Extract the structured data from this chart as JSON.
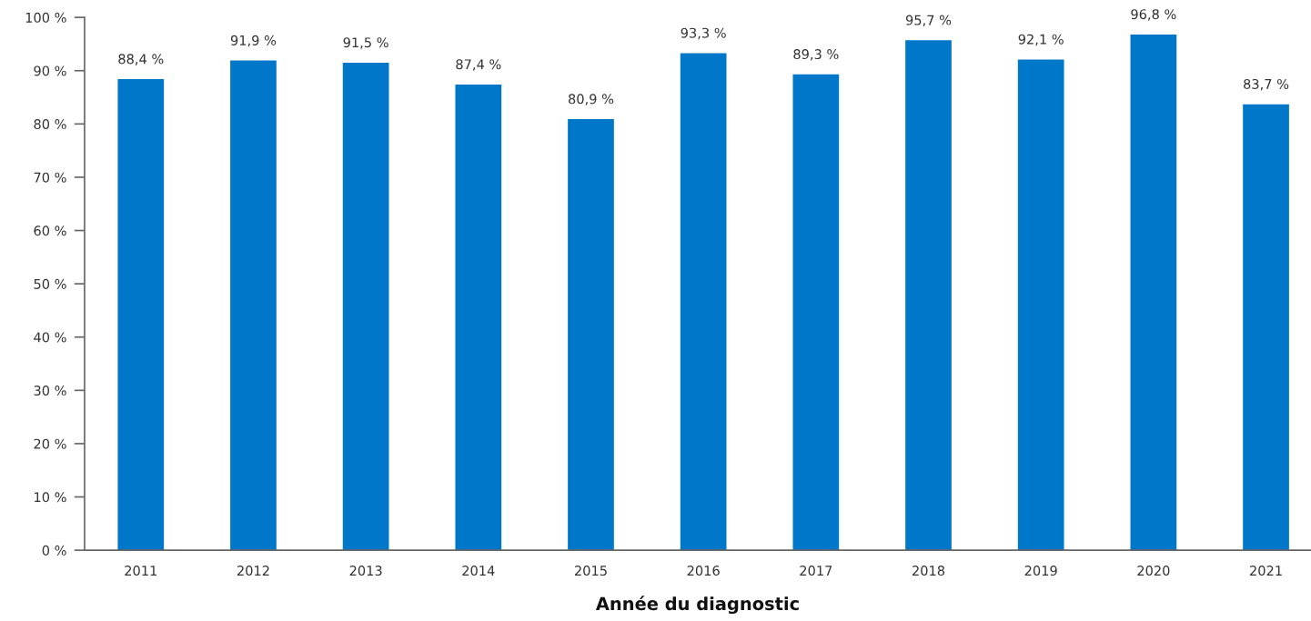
{
  "chart_data": {
    "type": "bar",
    "xlabel": "Année du diagnostic",
    "categories": [
      "2011",
      "2012",
      "2013",
      "2014",
      "2015",
      "2016",
      "2017",
      "2018",
      "2019",
      "2020",
      "2021"
    ],
    "values": [
      88.4,
      91.9,
      91.5,
      87.4,
      80.9,
      93.3,
      89.3,
      95.7,
      92.1,
      96.8,
      83.7
    ],
    "color": "#0077c8",
    "value_labels": [
      "88,4 %",
      "91,9 %",
      "91,5 %",
      "87,4 %",
      "80,9 %",
      "93,3 %",
      "89,3 %",
      "95,7 %",
      "92,1 %",
      "96,8 %",
      "83,7 %"
    ],
    "ylim": [
      0,
      100
    ],
    "yticks": [
      {
        "value": 0,
        "label": "0 %"
      },
      {
        "value": 10,
        "label": "10 %"
      },
      {
        "value": 20,
        "label": "20 %"
      },
      {
        "value": 30,
        "label": "30 %"
      },
      {
        "value": 40,
        "label": "40 %"
      },
      {
        "value": 50,
        "label": "50 %"
      },
      {
        "value": 60,
        "label": "60 %"
      },
      {
        "value": 70,
        "label": "70 %"
      },
      {
        "value": 80,
        "label": "80 %"
      },
      {
        "value": 90,
        "label": "90 %"
      },
      {
        "value": 100,
        "label": "100 %"
      }
    ]
  }
}
